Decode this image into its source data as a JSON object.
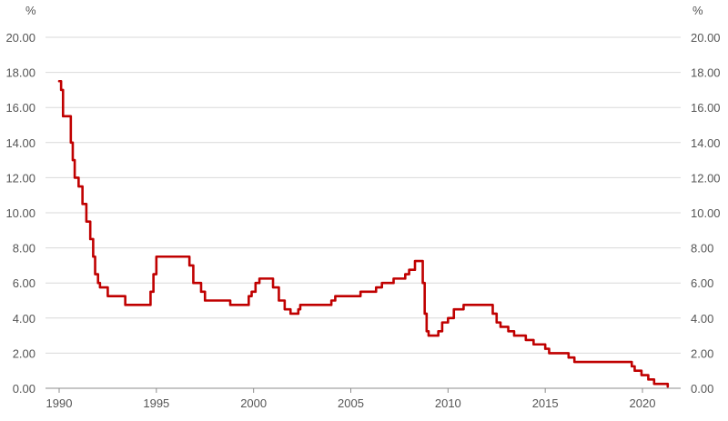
{
  "chart_data": {
    "type": "line",
    "title": "",
    "xlabel": "",
    "ylabel_left": "%",
    "ylabel_right": "%",
    "xlim": [
      1990,
      2021.5
    ],
    "ylim": [
      0,
      20
    ],
    "y_ticks": [
      0,
      2,
      4,
      6,
      8,
      10,
      12,
      14,
      16,
      18,
      20
    ],
    "y_tick_labels": [
      "0.00",
      "2.00",
      "4.00",
      "6.00",
      "8.00",
      "10.00",
      "12.00",
      "14.00",
      "16.00",
      "18.00",
      "20.00"
    ],
    "x_ticks": [
      1990,
      1995,
      2000,
      2005,
      2010,
      2015,
      2020
    ],
    "x_tick_labels": [
      "1990",
      "1995",
      "2000",
      "2005",
      "2010",
      "2015",
      "2020"
    ],
    "grid": "horizontal",
    "legend": "none",
    "series": [
      {
        "color": "#c00000",
        "step": true,
        "x": [
          1990.0,
          1990.1,
          1990.2,
          1990.6,
          1990.7,
          1990.8,
          1991.0,
          1991.2,
          1991.4,
          1991.6,
          1991.75,
          1991.85,
          1992.0,
          1992.1,
          1992.4,
          1992.5,
          1993.2,
          1993.4,
          1993.6,
          1994.6,
          1994.7,
          1994.85,
          1995.0,
          1996.5,
          1996.7,
          1996.9,
          1997.3,
          1997.5,
          1998.3,
          1998.8,
          1999.6,
          1999.75,
          1999.9,
          2000.1,
          2000.3,
          2000.6,
          2001.0,
          2001.3,
          2001.6,
          2001.9,
          2002.3,
          2002.4,
          2003.2,
          2003.7,
          2004.0,
          2004.2,
          2005.0,
          2005.5,
          2006.1,
          2006.3,
          2006.6,
          2007.2,
          2007.5,
          2007.8,
          2008.0,
          2008.3,
          2008.6,
          2008.7,
          2008.8,
          2008.9,
          2009.0,
          2009.5,
          2009.7,
          2010.0,
          2010.3,
          2010.8,
          2011.9,
          2012.3,
          2012.5,
          2012.7,
          2013.1,
          2013.4,
          2014.0,
          2014.4,
          2014.6,
          2014.8,
          2015.0,
          2015.2,
          2015.9,
          2016.2,
          2016.5,
          2017.5,
          2018.2,
          2019.0,
          2019.2,
          2019.45,
          2019.6,
          2019.95,
          2020.3,
          2020.6,
          2020.9,
          2021.3
        ],
        "values": [
          17.5,
          17.0,
          15.5,
          14.0,
          13.0,
          12.0,
          11.5,
          10.5,
          9.5,
          8.5,
          7.5,
          6.5,
          6.0,
          5.75,
          5.75,
          5.25,
          5.25,
          4.75,
          4.75,
          4.75,
          5.5,
          6.5,
          7.5,
          7.5,
          7.0,
          6.0,
          5.5,
          5.0,
          5.0,
          4.75,
          4.75,
          5.25,
          5.5,
          6.0,
          6.25,
          6.25,
          5.75,
          5.0,
          4.5,
          4.25,
          4.5,
          4.75,
          4.75,
          4.75,
          5.0,
          5.25,
          5.25,
          5.5,
          5.5,
          5.75,
          6.0,
          6.25,
          6.25,
          6.5,
          6.75,
          7.25,
          7.25,
          6.0,
          4.25,
          3.25,
          3.0,
          3.25,
          3.75,
          4.0,
          4.5,
          4.75,
          4.75,
          4.25,
          3.75,
          3.5,
          3.25,
          3.0,
          2.75,
          2.5,
          2.5,
          2.5,
          2.25,
          2.0,
          2.0,
          1.75,
          1.5,
          1.5,
          1.5,
          1.5,
          1.5,
          1.25,
          1.0,
          0.75,
          0.5,
          0.25,
          0.25,
          0.1
        ]
      }
    ]
  }
}
